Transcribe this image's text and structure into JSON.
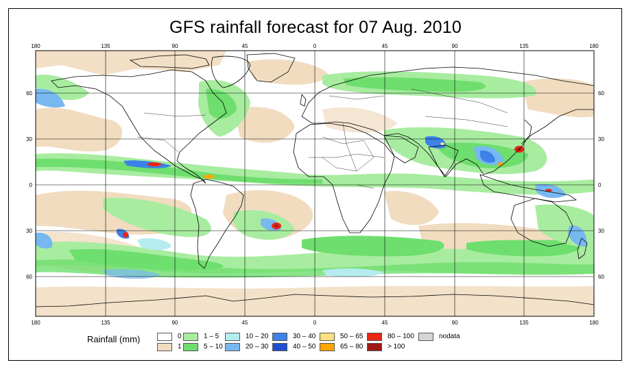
{
  "title": "GFS rainfall forecast for 07 Aug. 2010",
  "lon_ticks": [
    "180",
    "135",
    "90",
    "45",
    "0",
    "45",
    "90",
    "135",
    "180"
  ],
  "lat_ticks": [
    "60",
    "30",
    "0",
    "30",
    "60"
  ],
  "legend": {
    "title": "Rainfall (mm)",
    "items": [
      {
        "label": "0",
        "color": "#ffffff"
      },
      {
        "label": "1",
        "color": "#f1dcc0"
      },
      {
        "label": "1 – 5",
        "color": "#a8eca0"
      },
      {
        "label": "5 – 10",
        "color": "#6ede6e"
      },
      {
        "label": "10 – 20",
        "color": "#b4ecf0"
      },
      {
        "label": "20 – 30",
        "color": "#78b8f0"
      },
      {
        "label": "30 – 40",
        "color": "#3c82e8"
      },
      {
        "label": "40 – 50",
        "color": "#1e50d2"
      },
      {
        "label": "50 – 65",
        "color": "#ffe080"
      },
      {
        "label": "65 – 80",
        "color": "#ffa500"
      },
      {
        "label": "80 – 100",
        "color": "#e82810"
      },
      {
        "label": "> 100",
        "color": "#a01818"
      },
      {
        "label": "nodata",
        "color": "#d6d6d6"
      }
    ]
  }
}
